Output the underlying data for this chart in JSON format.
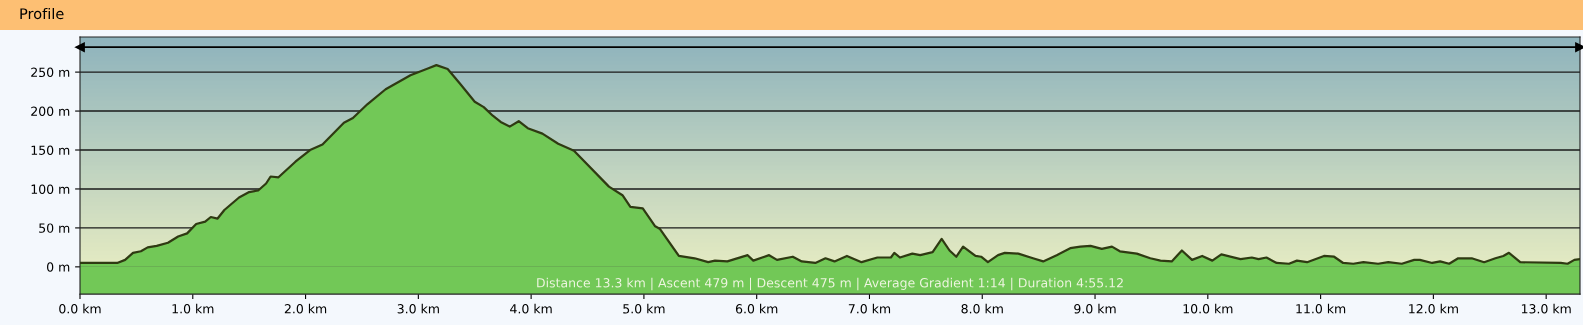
{
  "chart_data": {
    "type": "area",
    "title": "Profile",
    "annotations": [
      "Distance 13.3 km | Ascent 479 m | Descent 475 m | Average Gradient 1:14 | Duration 4:55.12"
    ],
    "series": [
      {
        "color": "#72c857",
        "x": [
          0,
          0.33,
          0.4,
          0.47,
          0.54,
          0.6,
          0.68,
          0.78,
          0.87,
          0.95,
          1.03,
          1.11,
          1.16,
          1.22,
          1.28,
          1.41,
          1.5,
          1.58,
          1.65,
          1.69,
          1.76,
          1.91,
          2.04,
          2.15,
          2.34,
          2.42,
          2.55,
          2.71,
          2.93,
          3.09,
          3.16,
          3.26,
          3.37,
          3.5,
          3.58,
          3.66,
          3.73,
          3.81,
          3.89,
          3.97,
          4.1,
          4.24,
          4.38,
          4.69,
          4.81,
          4.88,
          4.99,
          5.1,
          5.14,
          5.31,
          5.45,
          5.57,
          5.63,
          5.74,
          5.92,
          5.97,
          6.11,
          6.18,
          6.32,
          6.4,
          6.52,
          6.61,
          6.69,
          6.8,
          6.93,
          7.07,
          7.19,
          7.22,
          7.27,
          7.38,
          7.45,
          7.56,
          7.64,
          7.71,
          7.77,
          7.83,
          7.94,
          7.99,
          8.05,
          8.14,
          8.2,
          8.32,
          8.45,
          8.54,
          8.66,
          8.78,
          8.87,
          8.96,
          9.06,
          9.15,
          9.22,
          9.37,
          9.49,
          9.58,
          9.68,
          9.77,
          9.86,
          9.95,
          10.04,
          10.12,
          10.29,
          10.39,
          10.45,
          10.52,
          10.61,
          10.72,
          10.79,
          10.88,
          11.03,
          11.12,
          11.2,
          11.29,
          11.38,
          11.51,
          11.6,
          11.72,
          11.83,
          11.88,
          11.99,
          12.06,
          12.14,
          12.22,
          12.34,
          12.45,
          12.55,
          12.62,
          12.67,
          12.77,
          13.13,
          13.19,
          13.25,
          13.3
        ],
        "values": [
          5,
          5,
          9,
          18,
          20,
          25,
          27,
          31,
          39,
          43,
          55,
          58,
          64,
          62,
          73,
          89,
          96,
          98,
          107,
          116,
          115,
          135,
          150,
          157,
          185,
          191,
          209,
          228,
          246,
          255,
          259,
          254,
          235,
          212,
          205,
          194,
          186,
          180,
          187,
          178,
          171,
          158,
          149,
          103,
          92,
          77,
          75,
          52,
          49,
          14,
          11,
          6,
          8,
          7,
          15,
          8,
          15,
          9,
          13,
          7,
          5,
          11,
          7,
          14,
          6,
          12,
          12,
          18,
          12,
          17,
          15,
          19,
          36,
          21,
          13,
          26,
          14,
          13,
          6,
          15,
          18,
          17,
          11,
          7,
          15,
          24,
          26,
          27,
          23,
          26,
          20,
          17,
          11,
          8,
          7,
          21,
          9,
          14,
          8,
          16,
          10,
          12,
          10,
          12,
          5,
          4,
          8,
          6,
          14,
          13,
          5,
          4,
          6,
          4,
          6,
          4,
          9,
          9,
          5,
          7,
          4,
          11,
          11,
          6,
          11,
          14,
          18,
          6,
          5,
          4,
          9,
          10
        ]
      },
      {
        "type": "line",
        "color": "#000000",
        "marker": "triangle",
        "x": [
          0,
          13.3
        ],
        "values": [
          282,
          282
        ]
      }
    ],
    "xlim": [
      0,
      13.3
    ],
    "xticks": [
      {
        "value": 0,
        "label": "0.0 km"
      },
      {
        "value": 1,
        "label": "1.0 km"
      },
      {
        "value": 2,
        "label": "2.0 km"
      },
      {
        "value": 3,
        "label": "3.0 km"
      },
      {
        "value": 4,
        "label": "4.0 km"
      },
      {
        "value": 5,
        "label": "5.0 km"
      },
      {
        "value": 6,
        "label": "6.0 km"
      },
      {
        "value": 7,
        "label": "7.0 km"
      },
      {
        "value": 8,
        "label": "8.0 km"
      },
      {
        "value": 9,
        "label": "9.0 km"
      },
      {
        "value": 10,
        "label": "10.0 km"
      },
      {
        "value": 11,
        "label": "11.0 km"
      },
      {
        "value": 12,
        "label": "12.0 km"
      },
      {
        "value": 13,
        "label": "13.0 km"
      }
    ],
    "ylim": [
      -35,
      295
    ],
    "yticks": [
      {
        "value": 0,
        "label": "0 m"
      },
      {
        "value": 50,
        "label": "50 m"
      },
      {
        "value": 100,
        "label": "100 m"
      },
      {
        "value": 150,
        "label": "150 m"
      },
      {
        "value": 200,
        "label": "200 m"
      },
      {
        "value": 250,
        "label": "250 m"
      }
    ],
    "grid": "y"
  }
}
